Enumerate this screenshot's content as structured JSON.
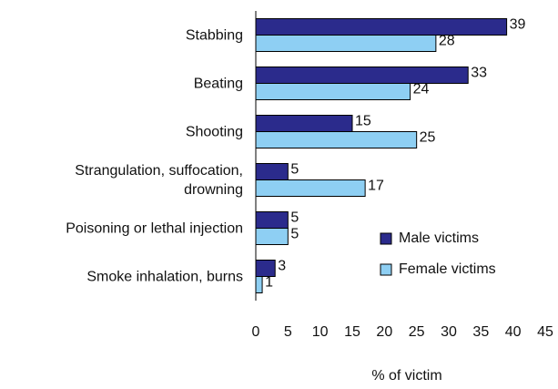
{
  "chart_data": {
    "type": "barh",
    "categories": [
      "Stabbing",
      "Beating",
      "Shooting",
      "Strangulation, suffocation,\ndrowning",
      "Poisoning or lethal injection",
      "Smoke inhalation, burns"
    ],
    "series": [
      {
        "name": "Male victims",
        "color": "#2b2b8c",
        "values": [
          39,
          33,
          15,
          5,
          5,
          3
        ]
      },
      {
        "name": "Female victims",
        "color": "#8ecff3",
        "values": [
          28,
          24,
          25,
          17,
          5,
          1
        ]
      }
    ],
    "x_label": "% of victim",
    "xlim": [
      0,
      45
    ],
    "xticks": [
      0,
      5,
      10,
      15,
      20,
      25,
      30,
      35,
      40,
      45
    ],
    "legend": "lower right"
  }
}
